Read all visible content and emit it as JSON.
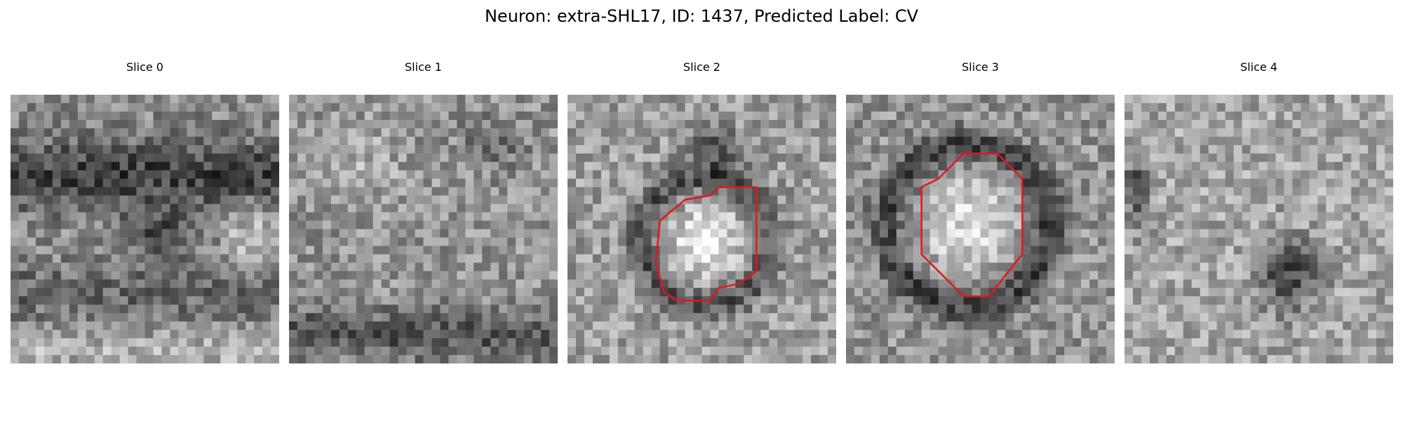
{
  "figure": {
    "title": "Neuron: extra-SHL17, ID: 1437, Predicted Label: CV"
  },
  "panels": [
    {
      "title": "Slice 0",
      "has_contour": false
    },
    {
      "title": "Slice 1",
      "has_contour": false
    },
    {
      "title": "Slice 2",
      "has_contour": true
    },
    {
      "title": "Slice 3",
      "has_contour": true
    },
    {
      "title": "Slice 4",
      "has_contour": false
    }
  ],
  "contour_color": "#e8141e",
  "colormap": "gray"
}
